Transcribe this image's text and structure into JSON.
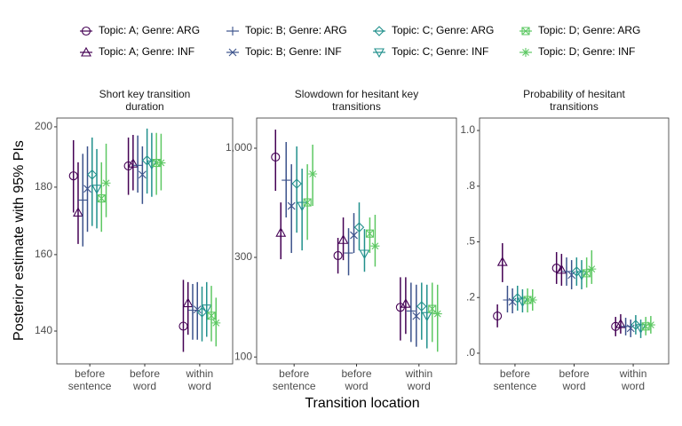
{
  "y_label": "Posterior estimate with 95% PIs",
  "x_label": "Transition location",
  "chart_data": [
    {
      "type": "pointrange",
      "title": "Short key transition\nduration",
      "log": true,
      "categories": [
        "before\nsentence",
        "before\nword",
        "within\nword"
      ],
      "ylim": [
        132.2,
        203.1
      ],
      "yticks": [
        140,
        160,
        180,
        200
      ],
      "series": [
        {
          "name": "Topic: A; Genre: ARG",
          "color": "#440154",
          "marker": "circle",
          "values": [
            183.6,
            186.8,
            141.2
          ],
          "lower": [
            172.2,
            177.6,
            135.0
          ],
          "upper": [
            195.4,
            196.3,
            153.1
          ]
        },
        {
          "name": "Topic: A; Genre: INF",
          "color": "#440154",
          "marker": "triangle",
          "values": [
            172.2,
            187.6,
            147.0
          ],
          "lower": [
            163.0,
            179.0,
            139.1
          ],
          "upper": [
            188.0,
            197.2,
            152.5
          ]
        },
        {
          "name": "Topic: B; Genre: ARG",
          "color": "#3B528B",
          "marker": "plus",
          "values": [
            176.0,
            187.0,
            145.2
          ],
          "lower": [
            162.3,
            178.3,
            137.9
          ],
          "upper": [
            190.8,
            197.0,
            152.0
          ]
        },
        {
          "name": "Topic: B; Genre: INF",
          "color": "#3B528B",
          "marker": "x",
          "values": [
            179.5,
            184.0,
            145.4
          ],
          "lower": [
            166.5,
            174.8,
            137.9
          ],
          "upper": [
            193.3,
            193.3,
            152.5
          ]
        },
        {
          "name": "Topic: C; Genre: ARG",
          "color": "#21908C",
          "marker": "diamond",
          "values": [
            184.0,
            188.6,
            144.7
          ],
          "lower": [
            168.2,
            178.0,
            137.5
          ],
          "upper": [
            196.3,
            199.4,
            151.3
          ]
        },
        {
          "name": "Topic: C; Genre: INF",
          "color": "#21908C",
          "marker": "triangle-down",
          "values": [
            179.5,
            187.3,
            145.6
          ],
          "lower": [
            167.5,
            177.0,
            138.6
          ],
          "upper": [
            192.4,
            197.9,
            152.5
          ]
        },
        {
          "name": "Topic: D; Genre: ARG",
          "color": "#5DC863",
          "marker": "square-x",
          "values": [
            176.5,
            187.8,
            143.8
          ],
          "lower": [
            166.5,
            177.6,
            137.5
          ],
          "upper": [
            188.0,
            197.9,
            151.5
          ]
        },
        {
          "name": "Topic: D; Genre: INF",
          "color": "#5DC863",
          "marker": "asterisk",
          "values": [
            181.3,
            187.8,
            142.0
          ],
          "lower": [
            170.8,
            179.0,
            136.3
          ],
          "upper": [
            194.2,
            197.6,
            148.4
          ]
        }
      ]
    },
    {
      "type": "pointrange",
      "title": "Slowdown for hesitant key\ntransitions",
      "log": true,
      "categories": [
        "before\nsentence",
        "before\nword",
        "within\nword"
      ],
      "ylim": [
        92.7,
        1395
      ],
      "yticks": [
        100,
        300,
        {
          "value": 1000,
          "label": "1,000"
        }
      ],
      "series": [
        {
          "name": "Topic: A; Genre: ARG",
          "color": "#440154",
          "marker": "circle",
          "values": [
            907,
            306,
            173
          ],
          "lower": [
            625,
            251,
            120
          ],
          "upper": [
            1228,
            372,
            241
          ]
        },
        {
          "name": "Topic: A; Genre: INF",
          "color": "#440154",
          "marker": "triangle",
          "values": [
            394,
            364,
            180
          ],
          "lower": [
            294,
            291,
            129
          ],
          "upper": [
            550,
            466,
            241
          ]
        },
        {
          "name": "Topic: B; Genre: ARG",
          "color": "#3B528B",
          "marker": "plus",
          "values": [
            703,
            315,
            166
          ],
          "lower": [
            466,
            246,
            118
          ],
          "upper": [
            1071,
            414,
            227
          ]
        },
        {
          "name": "Topic: B; Genre: INF",
          "color": "#3B528B",
          "marker": "x",
          "values": [
            529,
            383,
            157
          ],
          "lower": [
            315,
            315,
            112
          ],
          "upper": [
            838,
            489,
            222
          ]
        },
        {
          "name": "Topic: C; Genre: ARG",
          "color": "#21908C",
          "marker": "diamond",
          "values": [
            676,
            418,
            175
          ],
          "lower": [
            394,
            324,
            121
          ],
          "upper": [
            1020,
            550,
            227
          ]
        },
        {
          "name": "Topic: C; Genre: INF",
          "color": "#21908C",
          "marker": "triangle-down",
          "values": [
            529,
            312,
            157
          ],
          "lower": [
            324,
            256,
            110
          ],
          "upper": [
            798,
            410,
            222
          ]
        },
        {
          "name": "Topic: D; Genre: ARG",
          "color": "#5DC863",
          "marker": "square-x",
          "values": [
            550,
            390,
            170
          ],
          "lower": [
            364,
            315,
            118
          ],
          "upper": [
            838,
            466,
            227
          ]
        },
        {
          "name": "Topic: D; Genre: INF",
          "color": "#5DC863",
          "marker": "asterisk",
          "values": [
            753,
            340,
            161
          ],
          "lower": [
            529,
            271,
            106
          ],
          "upper": [
            1040,
            480,
            222
          ]
        }
      ]
    },
    {
      "type": "pointrange",
      "title": "Probability of hesitant\ntransitions",
      "log": false,
      "categories": [
        "before\nsentence",
        "before\nword",
        "within\nword"
      ],
      "ylim": [
        -0.048,
        1.056
      ],
      "yticks": [
        {
          "value": 0,
          "label": ".0"
        },
        {
          "value": 0.25,
          "label": ".2"
        },
        {
          "value": 0.5,
          "label": ".5"
        },
        {
          "value": 0.75,
          "label": ".8"
        },
        {
          "value": 1,
          "label": "1.0"
        }
      ],
      "series": [
        {
          "name": "Topic: A; Genre: ARG",
          "color": "#440154",
          "marker": "circle",
          "values": [
            0.167,
            0.382,
            0.12
          ],
          "lower": [
            0.116,
            0.311,
            0.076
          ],
          "upper": [
            0.219,
            0.454,
            0.163
          ]
        },
        {
          "name": "Topic: A; Genre: INF",
          "color": "#440154",
          "marker": "triangle",
          "values": [
            0.41,
            0.375,
            0.131
          ],
          "lower": [
            0.319,
            0.303,
            0.088
          ],
          "upper": [
            0.494,
            0.446,
            0.175
          ]
        },
        {
          "name": "Topic: B; Genre: ARG",
          "color": "#3B528B",
          "marker": "plus",
          "values": [
            0.239,
            0.367,
            0.12
          ],
          "lower": [
            0.183,
            0.303,
            0.08
          ],
          "upper": [
            0.303,
            0.43,
            0.159
          ]
        },
        {
          "name": "Topic: B; Genre: INF",
          "color": "#3B528B",
          "marker": "x",
          "values": [
            0.231,
            0.351,
            0.112
          ],
          "lower": [
            0.179,
            0.287,
            0.072
          ],
          "upper": [
            0.291,
            0.418,
            0.151
          ]
        },
        {
          "name": "Topic: C; Genre: ARG",
          "color": "#21908C",
          "marker": "diamond",
          "values": [
            0.247,
            0.367,
            0.127
          ],
          "lower": [
            0.191,
            0.303,
            0.084
          ],
          "upper": [
            0.303,
            0.43,
            0.171
          ]
        },
        {
          "name": "Topic: C; Genre: INF",
          "color": "#21908C",
          "marker": "triangle-down",
          "values": [
            0.231,
            0.351,
            0.112
          ],
          "lower": [
            0.183,
            0.287,
            0.068
          ],
          "upper": [
            0.287,
            0.418,
            0.151
          ]
        },
        {
          "name": "Topic: D; Genre: ARG",
          "color": "#5DC863",
          "marker": "square-x",
          "values": [
            0.239,
            0.359,
            0.12
          ],
          "lower": [
            0.183,
            0.295,
            0.08
          ],
          "upper": [
            0.291,
            0.43,
            0.163
          ]
        },
        {
          "name": "Topic: D; Genre: INF",
          "color": "#5DC863",
          "marker": "asterisk",
          "values": [
            0.239,
            0.378,
            0.127
          ],
          "lower": [
            0.191,
            0.311,
            0.088
          ],
          "upper": [
            0.287,
            0.462,
            0.167
          ]
        }
      ]
    }
  ]
}
